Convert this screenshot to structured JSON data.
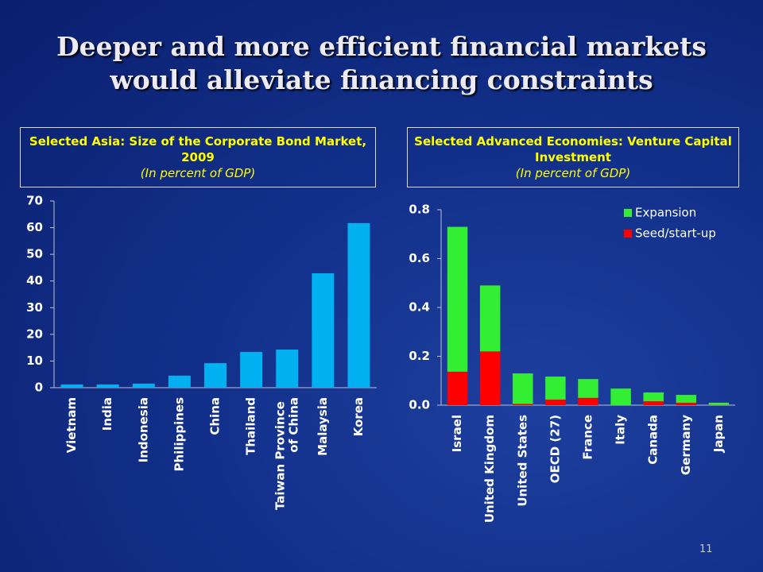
{
  "title": "Deeper and more efficient financial markets would alleviate financing constraints",
  "page_number": "11",
  "chart_data": [
    {
      "type": "bar",
      "title": "Selected Asia: Size of the Corporate Bond Market, 2009",
      "subtitle": "(In percent of GDP)",
      "categories": [
        "Vietnam",
        "India",
        "Indonesia",
        "Philippines",
        "China",
        "Thailand",
        "Taiwan Province of China",
        "Malaysia",
        "Korea"
      ],
      "values": [
        1.2,
        1.2,
        1.5,
        4.5,
        9.2,
        13.4,
        14.3,
        42.9,
        61.7
      ],
      "color": "#00b0f0",
      "ylim": [
        0,
        70
      ],
      "yticks": [
        0,
        10,
        20,
        30,
        40,
        50,
        60,
        70
      ]
    },
    {
      "type": "bar",
      "stacked": true,
      "title": "Selected Advanced Economies: Venture Capital Investment",
      "subtitle": "(In percent of GDP)",
      "categories": [
        "Israel",
        "United Kingdom",
        "United States",
        "OECD (27)",
        "France",
        "Italy",
        "Canada",
        "Germany",
        "Japan"
      ],
      "series": [
        {
          "name": "Seed/start-up",
          "color": "#ff0000",
          "values": [
            0.137,
            0.22,
            0.005,
            0.023,
            0.03,
            0,
            0.016,
            0.01,
            0.001
          ]
        },
        {
          "name": "Expansion",
          "color": "#33ee33",
          "values": [
            0.593,
            0.27,
            0.125,
            0.094,
            0.077,
            0.068,
            0.036,
            0.032,
            0.009
          ]
        }
      ],
      "legend": "upper right",
      "ylim": [
        0,
        0.8
      ],
      "yticks": [
        {
          "value": 0,
          "label": "0.0"
        },
        0.2,
        0.4,
        0.6,
        0.8
      ]
    }
  ]
}
